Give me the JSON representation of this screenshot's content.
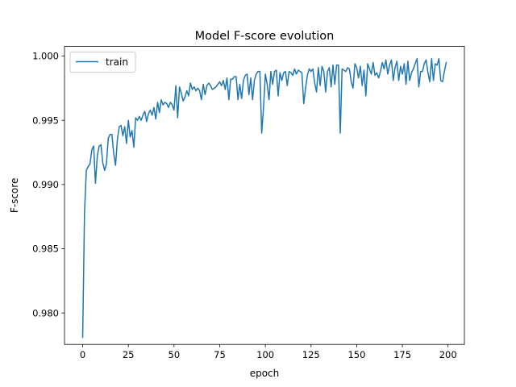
{
  "chart_data": {
    "type": "line",
    "title": "Model F-score evolution",
    "xlabel": "epoch",
    "ylabel": "F-score",
    "xlim": [
      -9.95,
      208.95
    ],
    "ylim": [
      0.97755,
      1.00075
    ],
    "xticks": [
      0,
      25,
      50,
      75,
      100,
      125,
      150,
      175,
      200
    ],
    "xtick_labels": [
      "0",
      "25",
      "50",
      "75",
      "100",
      "125",
      "150",
      "175",
      "200"
    ],
    "yticks": [
      0.98,
      0.985,
      0.99,
      0.995,
      1.0
    ],
    "ytick_labels": [
      "0.980",
      "0.985",
      "0.990",
      "0.995",
      "1.000"
    ],
    "grid": false,
    "legend": {
      "position": "upper-left",
      "entries": [
        "train"
      ]
    },
    "series": [
      {
        "name": "train",
        "color": "#1f77b4",
        "x_start": 0,
        "x_step": 1,
        "values": [
          0.9781,
          0.9878,
          0.9911,
          0.9914,
          0.9916,
          0.9927,
          0.993,
          0.9901,
          0.9922,
          0.993,
          0.9931,
          0.9917,
          0.9911,
          0.9916,
          0.9936,
          0.9939,
          0.9939,
          0.9924,
          0.9915,
          0.9935,
          0.9945,
          0.9946,
          0.9938,
          0.9945,
          0.9932,
          0.995,
          0.9937,
          0.9942,
          0.9929,
          0.9952,
          0.995,
          0.9953,
          0.995,
          0.9954,
          0.9957,
          0.9949,
          0.9955,
          0.9958,
          0.9954,
          0.996,
          0.9951,
          0.9964,
          0.9956,
          0.9966,
          0.9962,
          0.9964,
          0.9963,
          0.996,
          0.9964,
          0.9962,
          0.9958,
          0.9977,
          0.9952,
          0.9976,
          0.9971,
          0.9965,
          0.9968,
          0.9973,
          0.9969,
          0.9979,
          0.9974,
          0.9976,
          0.9973,
          0.9975,
          0.9973,
          0.9966,
          0.9978,
          0.997,
          0.9977,
          0.9979,
          0.9977,
          0.9974,
          0.9975,
          0.9976,
          0.9978,
          0.998,
          0.9977,
          0.9981,
          0.9974,
          0.9983,
          0.9966,
          0.9982,
          0.9982,
          0.9984,
          0.9984,
          0.9966,
          0.9978,
          0.9967,
          0.9981,
          0.9985,
          0.9986,
          0.997,
          0.9983,
          0.9966,
          0.9981,
          0.9986,
          0.9988,
          0.9988,
          0.994,
          0.996,
          0.9986,
          0.9978,
          0.9966,
          0.9988,
          0.9978,
          0.9988,
          0.9989,
          0.9969,
          0.9987,
          0.9981,
          0.9987,
          0.9988,
          0.9977,
          0.9988,
          0.9987,
          0.9985,
          0.999,
          0.9986,
          0.9989,
          0.9988,
          0.9987,
          0.9963,
          0.9975,
          0.9985,
          0.999,
          0.9988,
          0.999,
          0.9979,
          0.9972,
          0.9991,
          0.9977,
          0.9992,
          0.9988,
          0.9972,
          0.9988,
          0.9991,
          0.9976,
          0.9993,
          0.9978,
          0.9993,
          0.9993,
          0.994,
          0.999,
          0.9989,
          0.9988,
          0.9991,
          0.999,
          0.998,
          0.9975,
          0.9994,
          0.9991,
          0.9983,
          0.9992,
          0.9977,
          0.9989,
          0.9969,
          0.9994,
          0.999,
          0.9986,
          0.9995,
          0.9985,
          0.9987,
          0.9983,
          0.9988,
          0.9995,
          0.999,
          0.9997,
          0.9986,
          0.9993,
          0.9997,
          0.9981,
          0.9991,
          0.9996,
          0.9981,
          0.9992,
          0.9986,
          0.9994,
          0.9978,
          0.9996,
          0.9981,
          0.9987,
          0.999,
          0.9994,
          0.9998,
          0.9976,
          0.9988,
          0.9988,
          0.9994,
          0.9997,
          0.9987,
          0.998,
          0.9998,
          0.9981,
          0.9994,
          0.9993,
          0.9998,
          0.9981,
          0.998,
          0.9988,
          0.9995
        ]
      }
    ]
  }
}
